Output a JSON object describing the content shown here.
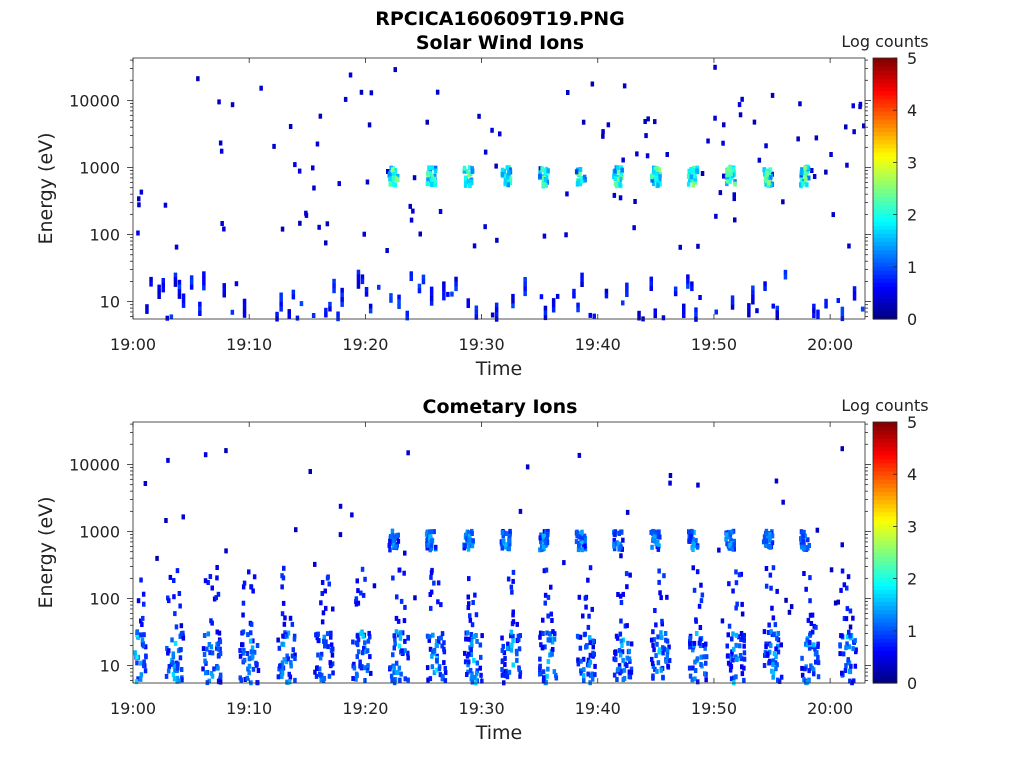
{
  "figure_title": "RPCICA160609T19.PNG",
  "chart_data": [
    {
      "type": "heatmap",
      "title": "Solar Wind Ions",
      "xlabel": "Time",
      "ylabel": "Energy (eV)",
      "x_range": [
        "19:00",
        "20:03"
      ],
      "y_scale": "log",
      "y_range": [
        5.5,
        43000
      ],
      "x_ticks": [
        "19:00",
        "19:10",
        "19:20",
        "19:30",
        "19:40",
        "19:50",
        "20:00"
      ],
      "y_ticks": [
        {
          "value": 10,
          "label": "10"
        },
        {
          "value": 100,
          "label": "100"
        },
        {
          "value": 1000,
          "label": "1000"
        },
        {
          "value": 10000,
          "label": "10000"
        }
      ],
      "colorbar": {
        "label": "Log counts",
        "min": 0,
        "max": 5,
        "ticks": [
          "0",
          "1",
          "2",
          "3",
          "4",
          "5"
        ]
      },
      "bursts": {
        "energy_eV": 800,
        "peak_log_counts": 2.7,
        "start_min": 22.3,
        "period_min": 3.22,
        "count": 12
      },
      "background": {
        "energy_range_eV": [
          60,
          35000
        ],
        "log_counts": 0.4,
        "density": 0.05
      },
      "low_energy_band": {
        "energy_range_eV": [
          6,
          30
        ],
        "log_counts": 0.7
      }
    },
    {
      "type": "heatmap",
      "title": "Cometary Ions",
      "xlabel": "Time",
      "ylabel": "Energy (eV)",
      "x_range": [
        "19:00",
        "20:03"
      ],
      "y_scale": "log",
      "y_range": [
        5.5,
        43000
      ],
      "x_ticks": [
        "19:00",
        "19:10",
        "19:20",
        "19:30",
        "19:40",
        "19:50",
        "20:00"
      ],
      "y_ticks": [
        {
          "value": 10,
          "label": "10"
        },
        {
          "value": 100,
          "label": "100"
        },
        {
          "value": 1000,
          "label": "1000"
        },
        {
          "value": 10000,
          "label": "10000"
        }
      ],
      "colorbar": {
        "label": "Log counts",
        "min": 0,
        "max": 5,
        "ticks": [
          "0",
          "1",
          "2",
          "3",
          "4",
          "5"
        ]
      },
      "bursts": {
        "energy_eV": 800,
        "peak_log_counts": 1.6,
        "start_min": 22.3,
        "period_min": 3.22,
        "count": 12
      },
      "low_energy_bursts": {
        "energy_range_eV": [
          6,
          35
        ],
        "peak_log_counts": 1.9,
        "start_min": 0.2,
        "period_min": 3.22,
        "count": 20
      },
      "background": {
        "energy_range_eV": [
          40,
          20000
        ],
        "log_counts": 0.4,
        "density": 0.02
      }
    }
  ]
}
